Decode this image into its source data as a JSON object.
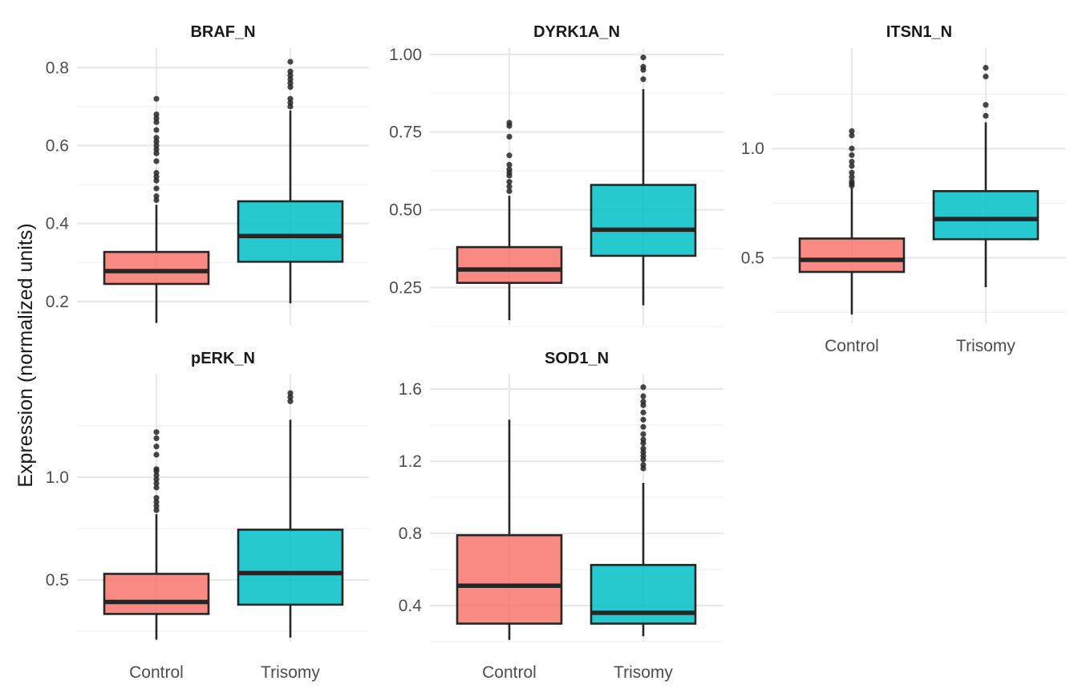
{
  "y_axis_title": "Expression (normalized units)",
  "colors": {
    "Control": "#F8766D",
    "Trisomy": "#00BFC4"
  },
  "chart_data": [
    {
      "type": "boxplot",
      "title": "BRAF_N",
      "categories": [
        "Control",
        "Trisomy"
      ],
      "show_x_labels": false,
      "ylim": [
        0.14,
        0.85
      ],
      "yticks": [
        0.2,
        0.4,
        0.6,
        0.8
      ],
      "ytick_labels": [
        "0.2",
        "0.4",
        "0.6",
        "0.8"
      ],
      "yminor": [
        0.3,
        0.5,
        0.7
      ],
      "boxes": [
        {
          "group": "Control",
          "whisker_low": 0.145,
          "q1": 0.245,
          "median": 0.278,
          "q3": 0.327,
          "whisker_high": 0.448,
          "outliers": [
            0.46,
            0.47,
            0.49,
            0.51,
            0.52,
            0.53,
            0.56,
            0.58,
            0.59,
            0.6,
            0.61,
            0.62,
            0.64,
            0.66,
            0.67,
            0.68,
            0.72
          ]
        },
        {
          "group": "Trisomy",
          "whisker_low": 0.195,
          "q1": 0.302,
          "median": 0.368,
          "q3": 0.457,
          "whisker_high": 0.69,
          "outliers": [
            0.7,
            0.71,
            0.72,
            0.75,
            0.76,
            0.77,
            0.78,
            0.79,
            0.815
          ]
        }
      ]
    },
    {
      "type": "boxplot",
      "title": "DYRK1A_N",
      "categories": [
        "Control",
        "Trisomy"
      ],
      "show_x_labels": false,
      "ylim": [
        0.13,
        1.02
      ],
      "yticks": [
        0.25,
        0.5,
        0.75,
        1.0
      ],
      "ytick_labels": [
        "0.25",
        "0.50",
        "0.75",
        "1.00"
      ],
      "yminor": [
        0.125,
        0.375,
        0.625,
        0.875
      ],
      "boxes": [
        {
          "group": "Control",
          "whisker_low": 0.145,
          "q1": 0.265,
          "median": 0.308,
          "q3": 0.38,
          "whisker_high": 0.545,
          "outliers": [
            0.56,
            0.575,
            0.59,
            0.61,
            0.62,
            0.63,
            0.645,
            0.675,
            0.735,
            0.77,
            0.78
          ]
        },
        {
          "group": "Trisomy",
          "whisker_low": 0.193,
          "q1": 0.352,
          "median": 0.436,
          "q3": 0.58,
          "whisker_high": 0.888,
          "outliers": [
            0.92,
            0.95,
            0.96,
            0.99
          ]
        }
      ]
    },
    {
      "type": "boxplot",
      "title": "ITSN1_N",
      "categories": [
        "Control",
        "Trisomy"
      ],
      "show_x_labels": true,
      "ylim": [
        0.2,
        1.46
      ],
      "yticks": [
        0.5,
        1.0
      ],
      "ytick_labels": [
        "0.5",
        "1.0"
      ],
      "yminor": [
        0.25,
        0.75,
        1.25
      ],
      "boxes": [
        {
          "group": "Control",
          "whisker_low": 0.24,
          "q1": 0.435,
          "median": 0.49,
          "q3": 0.588,
          "whisker_high": 0.82,
          "outliers": [
            0.83,
            0.84,
            0.85,
            0.87,
            0.89,
            0.92,
            0.94,
            0.97,
            1.0,
            1.06,
            1.08
          ]
        },
        {
          "group": "Trisomy",
          "whisker_low": 0.365,
          "q1": 0.585,
          "median": 0.677,
          "q3": 0.805,
          "whisker_high": 1.12,
          "outliers": [
            1.15,
            1.2,
            1.33,
            1.37
          ]
        }
      ]
    },
    {
      "type": "boxplot",
      "title": "pERK_N",
      "categories": [
        "Control",
        "Trisomy"
      ],
      "show_x_labels": true,
      "ylim": [
        0.2,
        1.5
      ],
      "yticks": [
        0.5,
        1.0
      ],
      "ytick_labels": [
        "0.5",
        "1.0"
      ],
      "yminor": [
        0.25,
        0.75,
        1.25
      ],
      "boxes": [
        {
          "group": "Control",
          "whisker_low": 0.21,
          "q1": 0.335,
          "median": 0.393,
          "q3": 0.53,
          "whisker_high": 0.82,
          "outliers": [
            0.84,
            0.86,
            0.88,
            0.9,
            0.95,
            0.97,
            0.99,
            1.01,
            1.03,
            1.04,
            1.11,
            1.15,
            1.19,
            1.22
          ]
        },
        {
          "group": "Trisomy",
          "whisker_low": 0.22,
          "q1": 0.38,
          "median": 0.534,
          "q3": 0.745,
          "whisker_high": 1.28,
          "outliers": [
            1.37,
            1.39,
            1.41
          ]
        }
      ]
    },
    {
      "type": "boxplot",
      "title": "SOD1_N",
      "categories": [
        "Control",
        "Trisomy"
      ],
      "show_x_labels": true,
      "ylim": [
        0.2,
        1.68
      ],
      "yticks": [
        0.4,
        0.8,
        1.2,
        1.6
      ],
      "ytick_labels": [
        "0.4",
        "0.8",
        "1.2",
        "1.6"
      ],
      "yminor": [
        0.2,
        0.6,
        1.0,
        1.4
      ],
      "boxes": [
        {
          "group": "Control",
          "whisker_low": 0.21,
          "q1": 0.3,
          "median": 0.51,
          "q3": 0.79,
          "whisker_high": 1.43,
          "outliers": []
        },
        {
          "group": "Trisomy",
          "whisker_low": 0.23,
          "q1": 0.3,
          "median": 0.36,
          "q3": 0.625,
          "whisker_high": 1.08,
          "outliers": [
            1.16,
            1.18,
            1.21,
            1.23,
            1.25,
            1.27,
            1.3,
            1.32,
            1.35,
            1.39,
            1.43,
            1.47,
            1.51,
            1.53,
            1.56,
            1.61
          ]
        }
      ]
    }
  ]
}
